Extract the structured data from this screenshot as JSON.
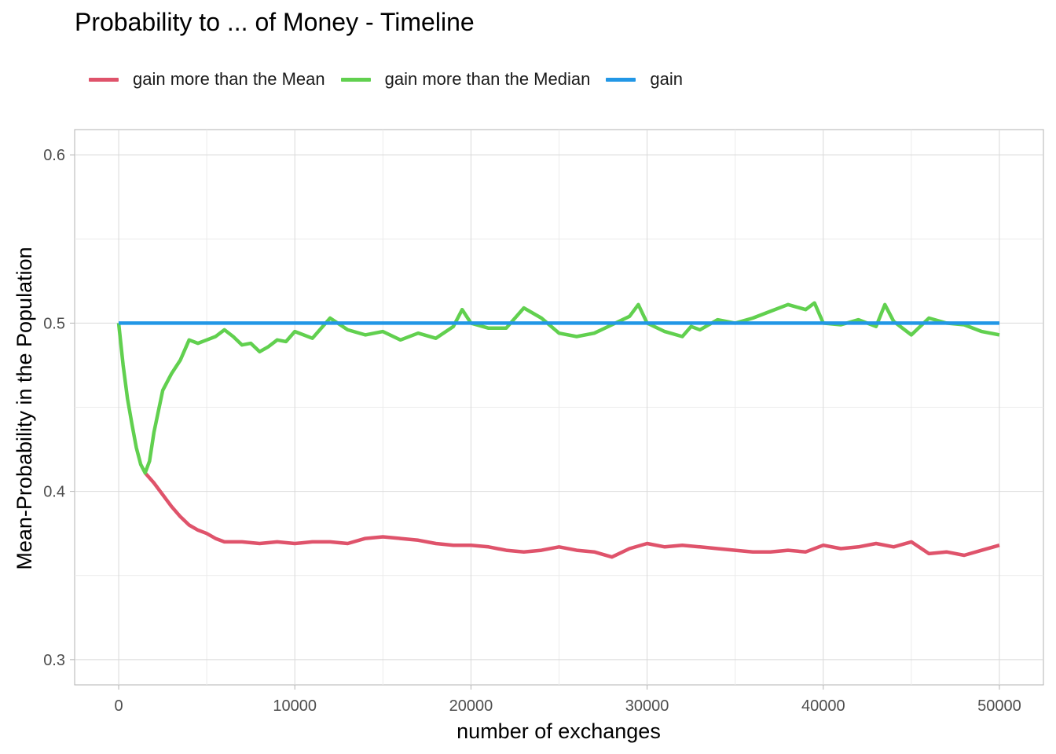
{
  "chart_data": {
    "type": "line",
    "title": "Probability to ... of Money - Timeline",
    "xlabel": "number of exchanges",
    "ylabel": "Mean-Probability in the Population",
    "xlim": [
      -2500,
      52500
    ],
    "ylim": [
      0.285,
      0.615
    ],
    "x_ticks": [
      0,
      10000,
      20000,
      30000,
      40000,
      50000
    ],
    "x_tick_labels": [
      "0",
      "10000",
      "20000",
      "30000",
      "40000",
      "50000"
    ],
    "y_ticks": [
      0.3,
      0.4,
      0.5,
      0.6
    ],
    "y_tick_labels": [
      "0.3",
      "0.4",
      "0.5",
      "0.6"
    ],
    "grid": true,
    "legend_position": "top-left",
    "series": [
      {
        "name": "gain more than the Mean",
        "color": "#DF536B",
        "x": [
          1500,
          2000,
          2500,
          3000,
          3500,
          4000,
          4500,
          5000,
          5500,
          6000,
          7000,
          8000,
          9000,
          10000,
          11000,
          12000,
          13000,
          14000,
          15000,
          16000,
          17000,
          18000,
          19000,
          20000,
          21000,
          22000,
          23000,
          24000,
          25000,
          26000,
          27000,
          28000,
          29000,
          30000,
          31000,
          32000,
          33000,
          34000,
          35000,
          36000,
          37000,
          38000,
          39000,
          40000,
          41000,
          42000,
          43000,
          44000,
          45000,
          46000,
          47000,
          48000,
          49000,
          50000
        ],
        "y": [
          0.411,
          0.405,
          0.398,
          0.391,
          0.385,
          0.38,
          0.377,
          0.375,
          0.372,
          0.37,
          0.37,
          0.369,
          0.37,
          0.369,
          0.37,
          0.37,
          0.369,
          0.372,
          0.373,
          0.372,
          0.371,
          0.369,
          0.368,
          0.368,
          0.367,
          0.365,
          0.364,
          0.365,
          0.367,
          0.365,
          0.364,
          0.361,
          0.366,
          0.369,
          0.367,
          0.368,
          0.367,
          0.366,
          0.365,
          0.364,
          0.364,
          0.365,
          0.364,
          0.368,
          0.366,
          0.367,
          0.369,
          0.367,
          0.37,
          0.363,
          0.364,
          0.362,
          0.365,
          0.368
        ]
      },
      {
        "name": "gain more than the Median",
        "color": "#61D04F",
        "x": [
          0,
          250,
          500,
          750,
          1000,
          1250,
          1500,
          1750,
          2000,
          2500,
          3000,
          3500,
          4000,
          4500,
          5000,
          5500,
          6000,
          6500,
          7000,
          7500,
          8000,
          8500,
          9000,
          9500,
          10000,
          11000,
          12000,
          13000,
          14000,
          15000,
          16000,
          17000,
          18000,
          19000,
          19500,
          20000,
          21000,
          22000,
          23000,
          24000,
          25000,
          26000,
          27000,
          28000,
          29000,
          29500,
          30000,
          31000,
          32000,
          32500,
          33000,
          34000,
          35000,
          36000,
          37000,
          38000,
          39000,
          39500,
          40000,
          41000,
          42000,
          43000,
          43500,
          44000,
          45000,
          46000,
          47000,
          48000,
          49000,
          50000
        ],
        "y": [
          0.5,
          0.475,
          0.455,
          0.44,
          0.426,
          0.416,
          0.411,
          0.418,
          0.435,
          0.46,
          0.47,
          0.478,
          0.49,
          0.488,
          0.49,
          0.492,
          0.496,
          0.492,
          0.487,
          0.488,
          0.483,
          0.486,
          0.49,
          0.489,
          0.495,
          0.491,
          0.503,
          0.496,
          0.493,
          0.495,
          0.49,
          0.494,
          0.491,
          0.498,
          0.508,
          0.5,
          0.497,
          0.497,
          0.509,
          0.503,
          0.494,
          0.492,
          0.494,
          0.499,
          0.504,
          0.511,
          0.5,
          0.495,
          0.492,
          0.498,
          0.496,
          0.502,
          0.5,
          0.503,
          0.507,
          0.511,
          0.508,
          0.512,
          0.5,
          0.499,
          0.502,
          0.498,
          0.511,
          0.501,
          0.493,
          0.503,
          0.5,
          0.499,
          0.495,
          0.493
        ]
      },
      {
        "name": "gain",
        "color": "#2297E6",
        "x": [
          0,
          50000
        ],
        "y": [
          0.5,
          0.5
        ]
      }
    ]
  }
}
